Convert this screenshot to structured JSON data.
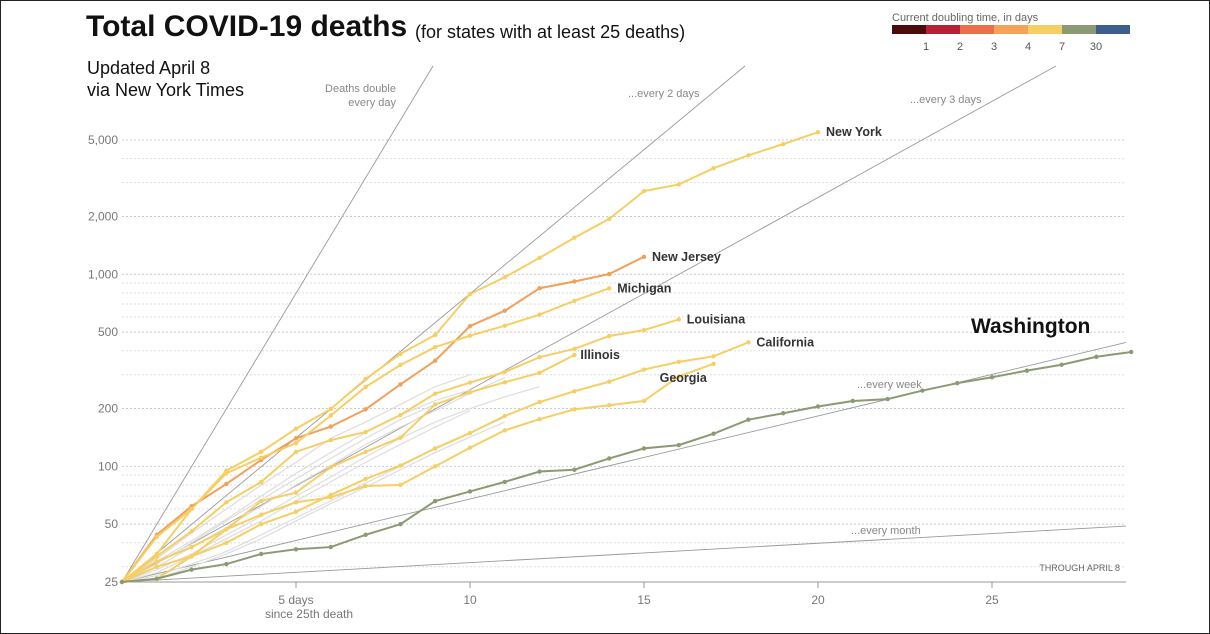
{
  "title": "Total COVID-19 deaths",
  "subtitle": "(for states with at least 25 deaths)",
  "notes": [
    "Updated April 8",
    "via New York Times"
  ],
  "legend": {
    "title": "Current doubling time, in days",
    "colors": [
      "#4a0b0b",
      "#b8203a",
      "#e9704a",
      "#f2a45d",
      "#f5cf63",
      "#8c9a73",
      "#3c5e8c"
    ],
    "ticks": [
      "1",
      "2",
      "3",
      "4",
      "7",
      "30"
    ]
  },
  "guides": [
    {
      "label": "Deaths double every day",
      "lines": [
        "Deaths double",
        "every day"
      ],
      "doubling_days": 1
    },
    {
      "label": "...every 2 days",
      "lines": [
        "...every 2 days"
      ],
      "doubling_days": 2
    },
    {
      "label": "...every 3 days",
      "lines": [
        "...every 3 days"
      ],
      "doubling_days": 3
    },
    {
      "label": "...every week",
      "lines": [
        "...every week"
      ],
      "doubling_days": 7
    },
    {
      "label": "...every month",
      "lines": [
        "...every month"
      ],
      "doubling_days": 30
    }
  ],
  "through_label": "THROUGH APRIL 8",
  "chart_data": {
    "type": "line",
    "title": "Total COVID-19 deaths",
    "xlabel": "since 25th death",
    "ylabel": "",
    "xlim": [
      0,
      29
    ],
    "ylim": [
      25,
      8000
    ],
    "y_scale": "log",
    "x_ticks": [
      {
        "value": 5,
        "label": "5 days"
      },
      {
        "value": 10,
        "label": "10"
      },
      {
        "value": 15,
        "label": "15"
      },
      {
        "value": 20,
        "label": "20"
      },
      {
        "value": 25,
        "label": "25"
      }
    ],
    "y_ticks": [
      {
        "value": 25,
        "label": "25"
      },
      {
        "value": 50,
        "label": "50"
      },
      {
        "value": 100,
        "label": "100"
      },
      {
        "value": 200,
        "label": "200"
      },
      {
        "value": 500,
        "label": "500"
      },
      {
        "value": 1000,
        "label": "1,000"
      },
      {
        "value": 2000,
        "label": "2,000"
      },
      {
        "value": 5000,
        "label": "5,000"
      }
    ],
    "grid": true,
    "series": [
      {
        "name": "New York",
        "color": "#f5cf63",
        "values": [
          25,
          35,
          60,
          95,
          119,
          157,
          199,
          285,
          385,
          483,
          789,
          965,
          1218,
          1550,
          1941,
          2710,
          2935,
          3565,
          4159,
          4758,
          5489
        ]
      },
      {
        "name": "New Jersey",
        "color": "#f0a05a",
        "values": [
          25,
          44,
          62,
          81,
          108,
          140,
          161,
          198,
          267,
          355,
          537,
          646,
          846,
          917,
          1003,
          1232
        ]
      },
      {
        "name": "Michigan",
        "color": "#f5cf63",
        "values": [
          25,
          43,
          60,
          92,
          111,
          132,
          184,
          259,
          337,
          417,
          479,
          540,
          617,
          727,
          845
        ]
      },
      {
        "name": "Louisiana",
        "color": "#f5cf63",
        "values": [
          25,
          34,
          46,
          65,
          83,
          119,
          137,
          151,
          185,
          239,
          273,
          310,
          370,
          409,
          477,
          512,
          582
        ]
      },
      {
        "name": "Illinois",
        "color": "#f5cf63",
        "values": [
          25,
          30,
          34,
          47,
          66,
          73,
          99,
          119,
          141,
          210,
          243,
          274,
          307,
          380
        ]
      },
      {
        "name": "California",
        "color": "#f5cf63",
        "values": [
          25,
          26,
          34,
          40,
          50,
          58,
          71,
          86,
          101,
          124,
          149,
          183,
          216,
          246,
          276,
          319,
          350,
          374,
          442
        ]
      },
      {
        "name": "Georgia",
        "color": "#f5cf63",
        "values": [
          25,
          32,
          38,
          47,
          56,
          65,
          69,
          79,
          80,
          100,
          125,
          154,
          176,
          198,
          208,
          219,
          294,
          342
        ]
      },
      {
        "name": "Washington",
        "color": "#8c9a73",
        "values": [
          25,
          26,
          29,
          31,
          35,
          37,
          38,
          44,
          50,
          66,
          74,
          83,
          94,
          96,
          110,
          124,
          129,
          148,
          175,
          189,
          205,
          219,
          224,
          248,
          271,
          291,
          315,
          338,
          372,
          394
        ]
      }
    ],
    "label_offsets_note": "labels drawn at series ends"
  }
}
